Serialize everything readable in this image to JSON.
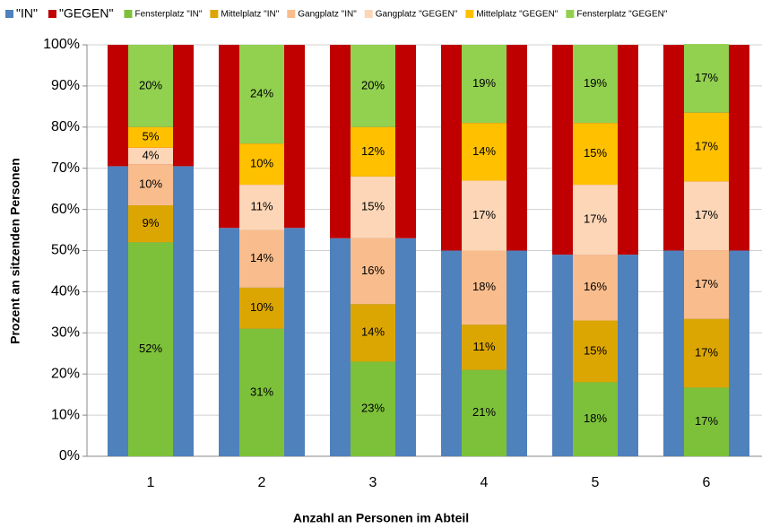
{
  "chart_data": {
    "type": "bar",
    "xlabel": "Anzahl an Personen im Abteil",
    "ylabel": "Prozent an sitzenden Personen",
    "categories": [
      "1",
      "2",
      "3",
      "4",
      "5",
      "6"
    ],
    "ylim": [
      0,
      100
    ],
    "yticks": [
      {
        "value": 0,
        "label": "0%"
      },
      {
        "value": 10,
        "label": "10%"
      },
      {
        "value": 20,
        "label": "20%"
      },
      {
        "value": 30,
        "label": "30%"
      },
      {
        "value": 40,
        "label": "40%"
      },
      {
        "value": 50,
        "label": "50%"
      },
      {
        "value": 60,
        "label": "60%"
      },
      {
        "value": 70,
        "label": "70%"
      },
      {
        "value": 80,
        "label": "80%"
      },
      {
        "value": 90,
        "label": "90%"
      },
      {
        "value": 100,
        "label": "100%"
      }
    ],
    "grid": true,
    "legend": "top",
    "series": [
      {
        "name": "\"IN\"",
        "color": "#4f81bd",
        "values": [
          70.5,
          55.5,
          53,
          50,
          49,
          50
        ]
      },
      {
        "name": "\"GEGEN\"",
        "color": "#c00000",
        "values": [
          29.5,
          44.5,
          47,
          50,
          51,
          50
        ]
      },
      {
        "name": "Fensterplatz \"IN\"",
        "color": "#7dc13a",
        "values": [
          52,
          31,
          23,
          21,
          18,
          16.7
        ],
        "value_labels": [
          "52%",
          "31%",
          "23%",
          "21%",
          "18%",
          "17%"
        ]
      },
      {
        "name": "Mittelplatz \"IN\"",
        "color": "#dca602",
        "values": [
          9,
          10,
          14,
          11,
          15,
          16.7
        ],
        "value_labels": [
          "9%",
          "10%",
          "14%",
          "11%",
          "15%",
          "17%"
        ]
      },
      {
        "name": "Gangplatz \"IN\"",
        "color": "#f9bc8c",
        "values": [
          10,
          14,
          16,
          18,
          16,
          16.7
        ],
        "value_labels": [
          "10%",
          "14%",
          "16%",
          "18%",
          "16%",
          "17%"
        ]
      },
      {
        "name": "Gangplatz \"GEGEN\"",
        "color": "#fcd6b6",
        "values": [
          4,
          11,
          15,
          17,
          17,
          16.7
        ],
        "value_labels": [
          "4%",
          "11%",
          "15%",
          "17%",
          "17%",
          "17%"
        ]
      },
      {
        "name": "Mittelplatz \"GEGEN\"",
        "color": "#ffc000",
        "values": [
          5,
          10,
          12,
          14,
          15,
          16.7
        ],
        "value_labels": [
          "5%",
          "10%",
          "12%",
          "14%",
          "15%",
          "17%"
        ]
      },
      {
        "name": "Fensterplatz \"GEGEN\"",
        "color": "#92d050",
        "values": [
          20,
          24,
          20,
          19,
          19,
          16.7
        ],
        "value_labels": [
          "20%",
          "24%",
          "20%",
          "19%",
          "19%",
          "17%"
        ]
      }
    ]
  }
}
